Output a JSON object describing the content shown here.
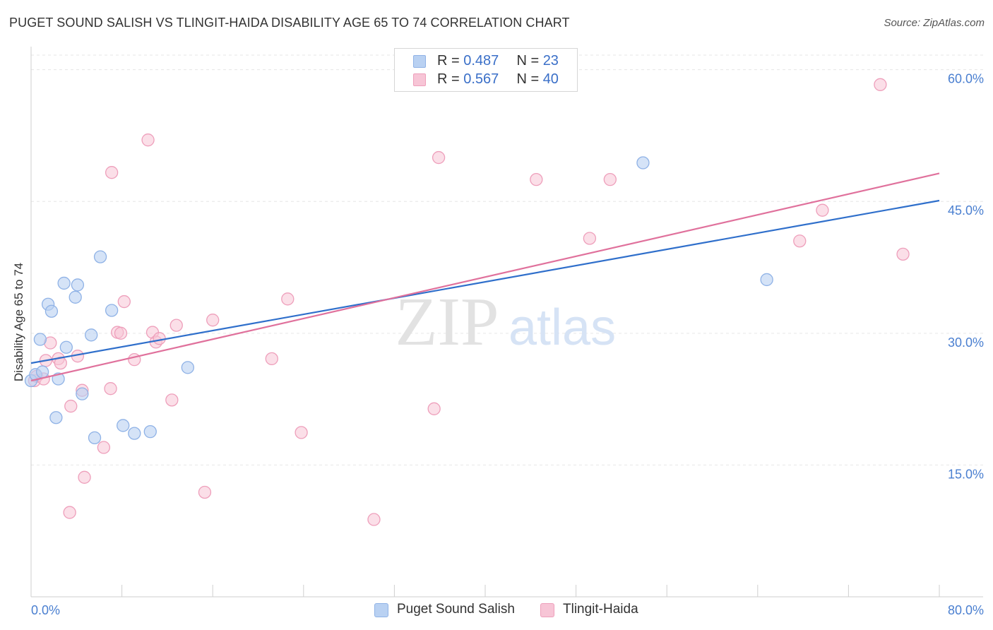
{
  "header": {
    "title": "PUGET SOUND SALISH VS TLINGIT-HAIDA DISABILITY AGE 65 TO 74 CORRELATION CHART",
    "source": "Source: ZipAtlas.com"
  },
  "legend": {
    "rows": [
      {
        "r_label": "R = ",
        "r_value": "0.487",
        "n_label": "N = ",
        "n_value": "23"
      },
      {
        "r_label": "R = ",
        "r_value": "0.567",
        "n_label": "N = ",
        "n_value": "40"
      }
    ]
  },
  "watermark": {
    "zip": "ZIP",
    "atlas": "atlas"
  },
  "colors": {
    "blue_fill": "#b9d1f2",
    "blue_stroke": "#8fb2e6",
    "blue_line": "#2f6fcb",
    "pink_fill": "#f7c5d6",
    "pink_stroke": "#ee9fbb",
    "pink_line": "#e0719c",
    "tick_label": "#4a7fd0",
    "grid": "#e6e6e6"
  },
  "chart_data": {
    "type": "scatter",
    "title": "PUGET SOUND SALISH VS TLINGIT-HAIDA DISABILITY AGE 65 TO 74 CORRELATION CHART",
    "xlabel": "",
    "ylabel": "Disability Age 65 to 74",
    "xlim": [
      0,
      80
    ],
    "ylim": [
      0,
      61.5
    ],
    "x_tick_labels": [
      "0.0%",
      "80.0%"
    ],
    "y_ticks": [
      15,
      30,
      45,
      60
    ],
    "y_tick_labels": [
      "15.0%",
      "30.0%",
      "45.0%",
      "60.0%"
    ],
    "legend": [
      "Puget Sound Salish",
      "Tlingit-Haida"
    ],
    "series": [
      {
        "name": "Puget Sound Salish",
        "color": "#b9d1f2",
        "r": "0.487",
        "n": "23",
        "trend": {
          "x": [
            0,
            80
          ],
          "y": [
            26.6,
            45.1
          ]
        },
        "points": [
          [
            0.0,
            24.6
          ],
          [
            0.4,
            25.3
          ],
          [
            0.8,
            29.3
          ],
          [
            1.0,
            25.6
          ],
          [
            1.5,
            33.3
          ],
          [
            1.8,
            32.5
          ],
          [
            2.2,
            20.4
          ],
          [
            2.4,
            24.8
          ],
          [
            2.9,
            35.7
          ],
          [
            3.1,
            28.4
          ],
          [
            3.9,
            34.1
          ],
          [
            4.1,
            35.5
          ],
          [
            4.5,
            23.1
          ],
          [
            5.3,
            29.8
          ],
          [
            5.6,
            18.1
          ],
          [
            6.1,
            38.7
          ],
          [
            7.1,
            32.6
          ],
          [
            8.1,
            19.5
          ],
          [
            9.1,
            18.6
          ],
          [
            10.5,
            18.8
          ],
          [
            13.8,
            26.1
          ],
          [
            53.9,
            49.4
          ],
          [
            64.8,
            36.1
          ]
        ]
      },
      {
        "name": "Tlingit-Haida",
        "color": "#f7c5d6",
        "r": "0.567",
        "n": "40",
        "trend": {
          "x": [
            0,
            80
          ],
          "y": [
            24.6,
            48.2
          ]
        },
        "points": [
          [
            0.3,
            24.6
          ],
          [
            0.5,
            25.1
          ],
          [
            1.1,
            24.8
          ],
          [
            1.3,
            26.9
          ],
          [
            1.7,
            28.9
          ],
          [
            2.4,
            27.1
          ],
          [
            2.6,
            26.6
          ],
          [
            3.4,
            9.6
          ],
          [
            3.5,
            21.7
          ],
          [
            4.1,
            27.4
          ],
          [
            4.5,
            23.5
          ],
          [
            4.7,
            13.6
          ],
          [
            6.4,
            17.0
          ],
          [
            7.0,
            23.7
          ],
          [
            7.1,
            48.3
          ],
          [
            7.6,
            30.1
          ],
          [
            7.9,
            30.0
          ],
          [
            8.2,
            33.6
          ],
          [
            9.1,
            27.0
          ],
          [
            10.3,
            52.0
          ],
          [
            10.7,
            30.1
          ],
          [
            11.0,
            29.0
          ],
          [
            11.3,
            29.4
          ],
          [
            12.4,
            22.4
          ],
          [
            12.8,
            30.9
          ],
          [
            15.3,
            11.9
          ],
          [
            16.0,
            31.5
          ],
          [
            21.2,
            27.1
          ],
          [
            22.6,
            33.9
          ],
          [
            23.8,
            18.7
          ],
          [
            30.2,
            8.8
          ],
          [
            35.5,
            21.4
          ],
          [
            35.9,
            50.0
          ],
          [
            44.5,
            47.5
          ],
          [
            49.2,
            40.8
          ],
          [
            51.0,
            47.5
          ],
          [
            67.7,
            40.5
          ],
          [
            69.7,
            44.0
          ],
          [
            74.8,
            58.3
          ],
          [
            76.8,
            39.0
          ]
        ]
      }
    ]
  }
}
